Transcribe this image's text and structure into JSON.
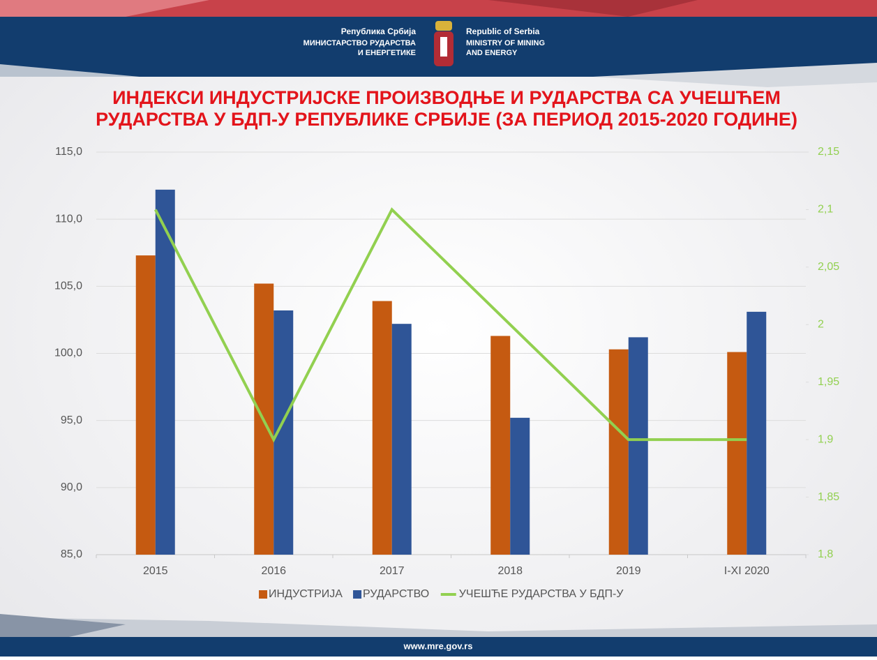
{
  "header": {
    "left": [
      "Република Србија",
      "МИНИСТАРСТВО РУДАРСТВА",
      "И ЕНЕРГЕТИКЕ"
    ],
    "right": [
      "Republic of Serbia",
      "MINISTRY OF MINING",
      "AND ENERGY"
    ]
  },
  "chart_data": {
    "type": "bar",
    "title": [
      "ИНДЕКСИ ИНДУСТРИЈСКЕ ПРОИЗВОДЊЕ И РУДАРСТВА СА УЧЕШЋЕМ",
      "РУДАРСТВА У БДП-У РЕПУБЛИКЕ СРБИЈЕ (ЗА ПЕРИОД 2015-2020 ГОДИНЕ)"
    ],
    "categories": [
      "2015",
      "2016",
      "2017",
      "2018",
      "2019",
      "I-XI 2020"
    ],
    "series": [
      {
        "name": "ИНДУСТРИЈА",
        "color": "#c55a11",
        "values": [
          107.3,
          105.2,
          103.9,
          101.3,
          100.3,
          100.1
        ]
      },
      {
        "name": "РУДАРСТВО",
        "color": "#2f5597",
        "values": [
          112.2,
          103.2,
          102.2,
          95.2,
          101.2,
          103.1
        ]
      },
      {
        "name": "УЧЕШЋЕ РУДАРСТВА У БДП-У",
        "color": "#92d050",
        "type": "line",
        "axis": "y2",
        "values": [
          2.1,
          1.9,
          2.1,
          2.0,
          1.9,
          1.9
        ]
      }
    ],
    "ylim": [
      85,
      115
    ],
    "yticks": [
      {
        "value": 85,
        "label": "85,0"
      },
      {
        "value": 90,
        "label": "90,0"
      },
      {
        "value": 95,
        "label": "95,0"
      },
      {
        "value": 100,
        "label": "100,0"
      },
      {
        "value": 105,
        "label": "105,0"
      },
      {
        "value": 110,
        "label": "110,0"
      },
      {
        "value": 115,
        "label": "115,0"
      }
    ],
    "y2lim": [
      1.8,
      2.15
    ],
    "y2ticks": [
      {
        "value": 1.8,
        "label": "1,8"
      },
      {
        "value": 1.85,
        "label": "1,85"
      },
      {
        "value": 1.9,
        "label": "1,9"
      },
      {
        "value": 1.95,
        "label": "1,95"
      },
      2,
      {
        "value": 2.05,
        "label": "2,05"
      },
      {
        "value": 2.1,
        "label": "2,1"
      },
      {
        "value": 2.15,
        "label": "2,15"
      }
    ],
    "grid": true,
    "legend": "bottom"
  },
  "footer": {
    "url": "www.mre.gov.rs"
  }
}
